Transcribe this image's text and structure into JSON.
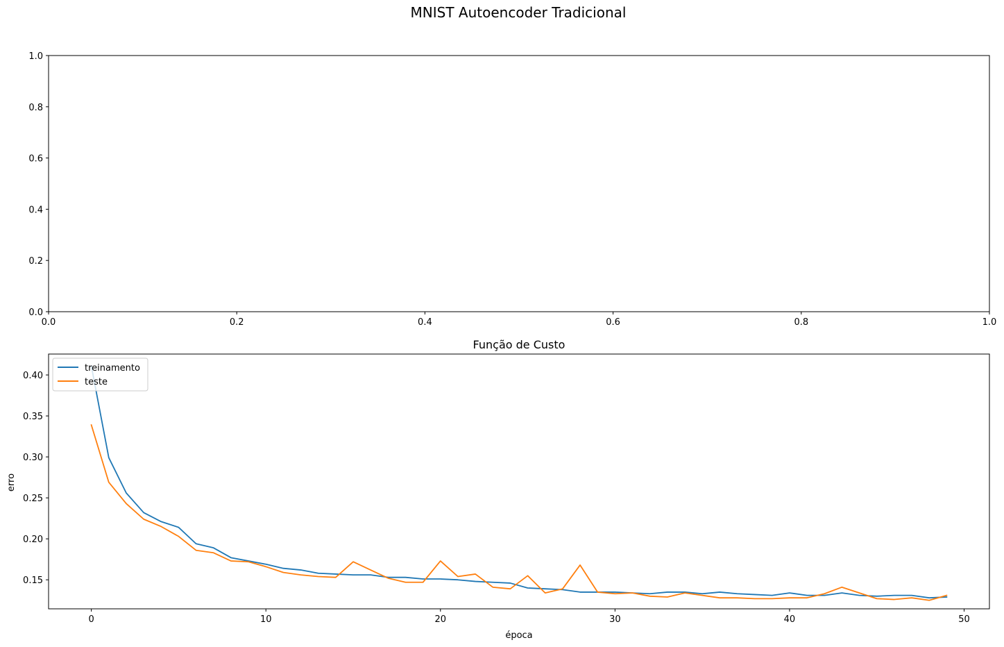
{
  "figure": {
    "suptitle": "MNIST Autoencoder Tradicional"
  },
  "chart_data": [
    {
      "type": "line",
      "title": "",
      "xlabel": "",
      "ylabel": "",
      "xlim": [
        0.0,
        1.0
      ],
      "ylim": [
        0.0,
        1.0
      ],
      "xticks": [
        "0.0",
        "0.2",
        "0.4",
        "0.6",
        "0.8",
        "1.0"
      ],
      "yticks": [
        "0.0",
        "0.2",
        "0.4",
        "0.6",
        "0.8",
        "1.0"
      ],
      "series": [],
      "grid": false
    },
    {
      "type": "line",
      "title": "Função de Custo",
      "xlabel": "época",
      "ylabel": "erro",
      "xlim": [
        -2.45,
        51.45
      ],
      "ylim": [
        0.1146,
        0.4255
      ],
      "xticks": [
        "0",
        "10",
        "20",
        "30",
        "40",
        "50"
      ],
      "yticks": [
        "0.15",
        "0.20",
        "0.25",
        "0.30",
        "0.35",
        "0.40"
      ],
      "legend": "upper left",
      "grid": false,
      "x": [
        0,
        1,
        2,
        3,
        4,
        5,
        6,
        7,
        8,
        9,
        10,
        11,
        12,
        13,
        14,
        15,
        16,
        17,
        18,
        19,
        20,
        21,
        22,
        23,
        24,
        25,
        26,
        27,
        28,
        29,
        30,
        31,
        32,
        33,
        34,
        35,
        36,
        37,
        38,
        39,
        40,
        41,
        42,
        43,
        44,
        45,
        46,
        47,
        48,
        49
      ],
      "series": [
        {
          "name": "treinamento",
          "color": "#1f77b4",
          "values": [
            0.411,
            0.299,
            0.256,
            0.232,
            0.221,
            0.214,
            0.194,
            0.189,
            0.177,
            0.173,
            0.169,
            0.164,
            0.162,
            0.158,
            0.157,
            0.156,
            0.156,
            0.153,
            0.153,
            0.151,
            0.151,
            0.15,
            0.148,
            0.147,
            0.146,
            0.14,
            0.139,
            0.138,
            0.135,
            0.135,
            0.135,
            0.134,
            0.133,
            0.135,
            0.135,
            0.133,
            0.135,
            0.133,
            0.132,
            0.131,
            0.134,
            0.131,
            0.131,
            0.134,
            0.131,
            0.13,
            0.131,
            0.131,
            0.128,
            0.129
          ]
        },
        {
          "name": "teste",
          "color": "#ff7f0e",
          "values": [
            0.339,
            0.269,
            0.243,
            0.224,
            0.215,
            0.203,
            0.186,
            0.183,
            0.173,
            0.172,
            0.166,
            0.159,
            0.156,
            0.154,
            0.153,
            0.172,
            0.162,
            0.152,
            0.147,
            0.147,
            0.173,
            0.154,
            0.157,
            0.141,
            0.139,
            0.155,
            0.134,
            0.139,
            0.168,
            0.135,
            0.133,
            0.134,
            0.13,
            0.129,
            0.134,
            0.131,
            0.128,
            0.128,
            0.127,
            0.127,
            0.128,
            0.128,
            0.133,
            0.141,
            0.134,
            0.127,
            0.126,
            0.128,
            0.125,
            0.131
          ]
        }
      ]
    }
  ]
}
